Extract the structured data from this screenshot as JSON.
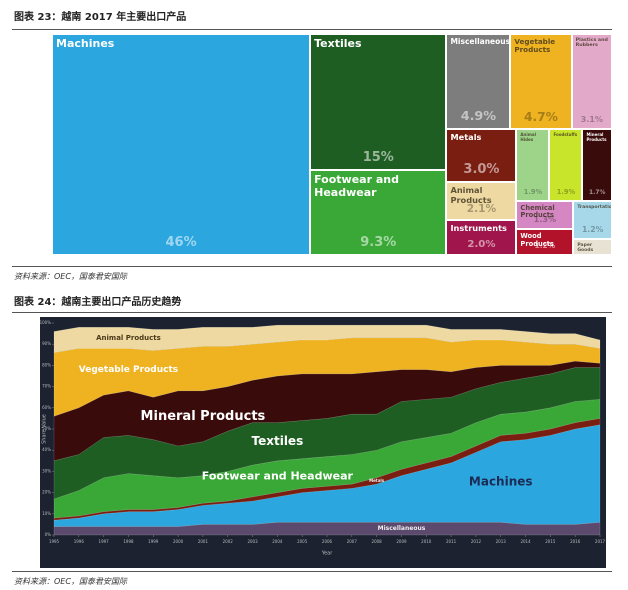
{
  "figures": [
    {
      "caption": "图表 23：越南 2017 年主要出口产品",
      "source": "资料来源：OEC，国泰君安国际"
    },
    {
      "caption": "图表 24：越南主要出口产品历史趋势",
      "source": "资料来源：OEC，国泰君安国际"
    }
  ],
  "chart_data": [
    {
      "type": "treemap",
      "categories": [
        "Machines",
        "Textiles",
        "Footwear and Headwear",
        "Miscellaneous",
        "Vegetable Products",
        "Plastics and Rubbers",
        "Metals",
        "Animal Products",
        "Instruments",
        "Animal Hides",
        "Foodstuffs",
        "Mineral Products",
        "Chemical Products",
        "Wood Products",
        "Transportation",
        "Paper Goods"
      ],
      "values": [
        46,
        15,
        9.3,
        4.9,
        4.7,
        3.1,
        3.0,
        2.1,
        2.0,
        1.9,
        1.9,
        1.7,
        1.3,
        1.2,
        1.2,
        0.5
      ],
      "value_labels": [
        "46%",
        "15%",
        "9.3%",
        "4.9%",
        "4.7%",
        "3.1%",
        "3.0%",
        "2.1%",
        "2.0%",
        "1.9%",
        "1.9%",
        "1.7%",
        "1.3%",
        "1.2%",
        "1.2%",
        null
      ],
      "colors": [
        "#2ba6de",
        "#1f5e22",
        "#3aa837",
        "#7d7d7d",
        "#efb321",
        "#e3a9c8",
        "#7a1e12",
        "#eed9a2",
        "#a0154b",
        "#9ed48a",
        "#c9e52b",
        "#3a0b0b",
        "#d487c2",
        "#b3122b",
        "#a7d8ea",
        "#e8e2d4"
      ]
    },
    {
      "type": "stacked_area",
      "x": [
        1995,
        1996,
        1997,
        1998,
        1999,
        2000,
        2001,
        2002,
        2003,
        2004,
        2005,
        2006,
        2007,
        2008,
        2009,
        2010,
        2011,
        2012,
        2013,
        2014,
        2015,
        2016,
        2017
      ],
      "xlim": [
        1995,
        2017
      ],
      "ylim": [
        0,
        100
      ],
      "yticks": [
        {
          "value": 0,
          "label": "0%"
        },
        {
          "value": 10,
          "label": "10%"
        },
        {
          "value": 20,
          "label": "20%"
        },
        {
          "value": 30,
          "label": "30%"
        },
        {
          "value": 40,
          "label": "40%"
        },
        {
          "value": 50,
          "label": "50%"
        },
        {
          "value": 60,
          "label": "60%"
        },
        {
          "value": 70,
          "label": "70%"
        },
        {
          "value": 80,
          "label": "80%"
        },
        {
          "value": 90,
          "label": "90%"
        },
        {
          "value": 100,
          "label": "100%"
        }
      ],
      "ylabel": "Share Value",
      "xlabel": "Year",
      "series": [
        {
          "name": "Miscellaneous",
          "color": "#5b4a6d",
          "values": [
            4,
            4,
            4,
            4,
            4,
            4,
            5,
            5,
            5,
            6,
            6,
            6,
            6,
            6,
            6,
            6,
            6,
            6,
            6,
            5,
            5,
            5,
            6
          ]
        },
        {
          "name": "Machines",
          "color": "#2ba6de",
          "values": [
            3,
            4,
            6,
            7,
            7,
            8,
            9,
            10,
            11,
            12,
            14,
            15,
            16,
            18,
            22,
            25,
            28,
            33,
            38,
            40,
            42,
            45,
            46
          ]
        },
        {
          "name": "Metals",
          "color": "#7a1e12",
          "values": [
            1,
            1,
            1,
            1,
            1,
            1,
            1,
            1,
            2,
            2,
            2,
            2,
            2,
            3,
            3,
            3,
            3,
            3,
            3,
            3,
            3,
            3,
            3
          ]
        },
        {
          "name": "Footwear and Headwear",
          "color": "#3aa837",
          "values": [
            9,
            12,
            16,
            17,
            16,
            14,
            13,
            14,
            15,
            15,
            14,
            14,
            14,
            13,
            13,
            12,
            11,
            11,
            10,
            10,
            10,
            10,
            9
          ]
        },
        {
          "name": "Textiles",
          "color": "#1f5e22",
          "values": [
            18,
            17,
            19,
            18,
            17,
            15,
            16,
            19,
            20,
            18,
            18,
            18,
            19,
            17,
            19,
            18,
            17,
            16,
            15,
            16,
            16,
            16,
            15
          ]
        },
        {
          "name": "Mineral Products",
          "color": "#3a0b0b",
          "values": [
            21,
            22,
            20,
            21,
            20,
            26,
            24,
            21,
            20,
            22,
            22,
            21,
            19,
            20,
            15,
            14,
            12,
            10,
            8,
            6,
            4,
            3,
            2
          ]
        },
        {
          "name": "Vegetable Products",
          "color": "#efb321",
          "values": [
            30,
            28,
            22,
            20,
            22,
            20,
            21,
            19,
            17,
            16,
            16,
            16,
            17,
            16,
            15,
            15,
            14,
            13,
            12,
            11,
            10,
            8,
            7
          ]
        },
        {
          "name": "Animal Products",
          "color": "#eed9a2",
          "values": [
            10,
            10,
            10,
            10,
            10,
            9,
            9,
            9,
            8,
            8,
            7,
            7,
            6,
            6,
            6,
            6,
            6,
            5,
            5,
            5,
            5,
            5,
            4
          ]
        }
      ]
    }
  ]
}
